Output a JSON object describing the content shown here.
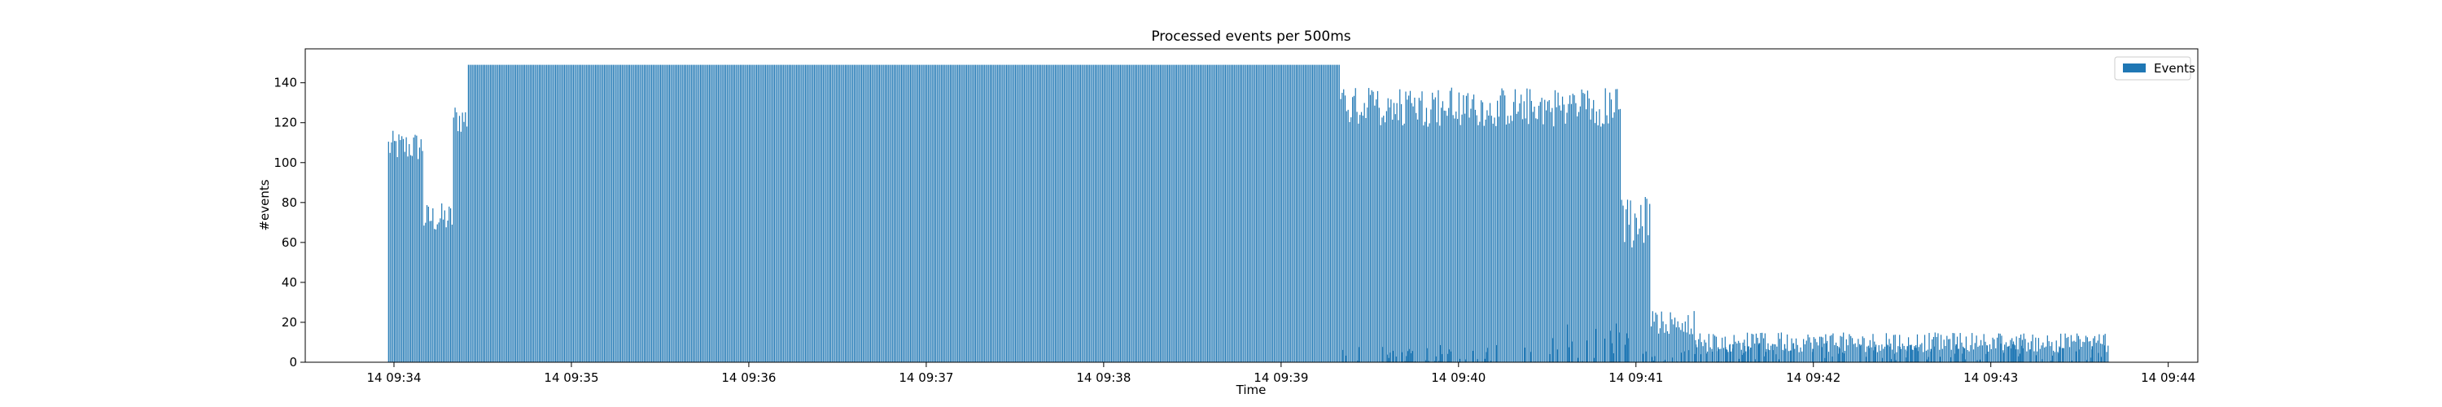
{
  "chart_data": {
    "type": "bar",
    "title": "Processed events per 500ms",
    "xlabel": "Time",
    "ylabel": "#events",
    "xlim": [
      "14 09:33:30",
      "14 09:44:10"
    ],
    "ylim": [
      0,
      157
    ],
    "xticks": [
      {
        "time": "14 09:34:00",
        "label": "14 09:34"
      },
      {
        "time": "14 09:35:00",
        "label": "14 09:35"
      },
      {
        "time": "14 09:36:00",
        "label": "14 09:36"
      },
      {
        "time": "14 09:37:00",
        "label": "14 09:37"
      },
      {
        "time": "14 09:38:00",
        "label": "14 09:38"
      },
      {
        "time": "14 09:39:00",
        "label": "14 09:39"
      },
      {
        "time": "14 09:40:00",
        "label": "14 09:40"
      },
      {
        "time": "14 09:41:00",
        "label": "14 09:41"
      },
      {
        "time": "14 09:42:00",
        "label": "14 09:42"
      },
      {
        "time": "14 09:43:00",
        "label": "14 09:43"
      },
      {
        "time": "14 09:44:00",
        "label": "14 09:44"
      }
    ],
    "yticks": [
      0,
      20,
      40,
      60,
      80,
      100,
      120,
      140
    ],
    "grid": false,
    "legend": {
      "position": "top-right",
      "entries": [
        "Events"
      ]
    },
    "series": [
      {
        "name": "Events",
        "color": "#1f77b4",
        "interval": "500ms",
        "start": "14 09:33:58",
        "end": "14 09:43:40",
        "segments": [
          {
            "from": "14 09:33:58",
            "to": "14 09:34:10",
            "level": 108,
            "jitter": 8
          },
          {
            "from": "14 09:34:10",
            "to": "14 09:34:20",
            "level": 72,
            "jitter": 8
          },
          {
            "from": "14 09:34:20",
            "to": "14 09:34:25",
            "level": 122,
            "jitter": 8
          },
          {
            "from": "14 09:34:25",
            "to": "14 09:39:20",
            "level": 149,
            "jitter": 1
          },
          {
            "from": "14 09:39:20",
            "to": "14 09:40:55",
            "level": 128,
            "jitter": 10
          },
          {
            "from": "14 09:40:55",
            "to": "14 09:41:05",
            "level": 70,
            "jitter": 15
          },
          {
            "from": "14 09:41:05",
            "to": "14 09:41:20",
            "level": 20,
            "jitter": 6
          },
          {
            "from": "14 09:41:20",
            "to": "14 09:43:40",
            "level": 10,
            "jitter": 5
          }
        ],
        "background_spike_level": 8
      }
    ]
  }
}
